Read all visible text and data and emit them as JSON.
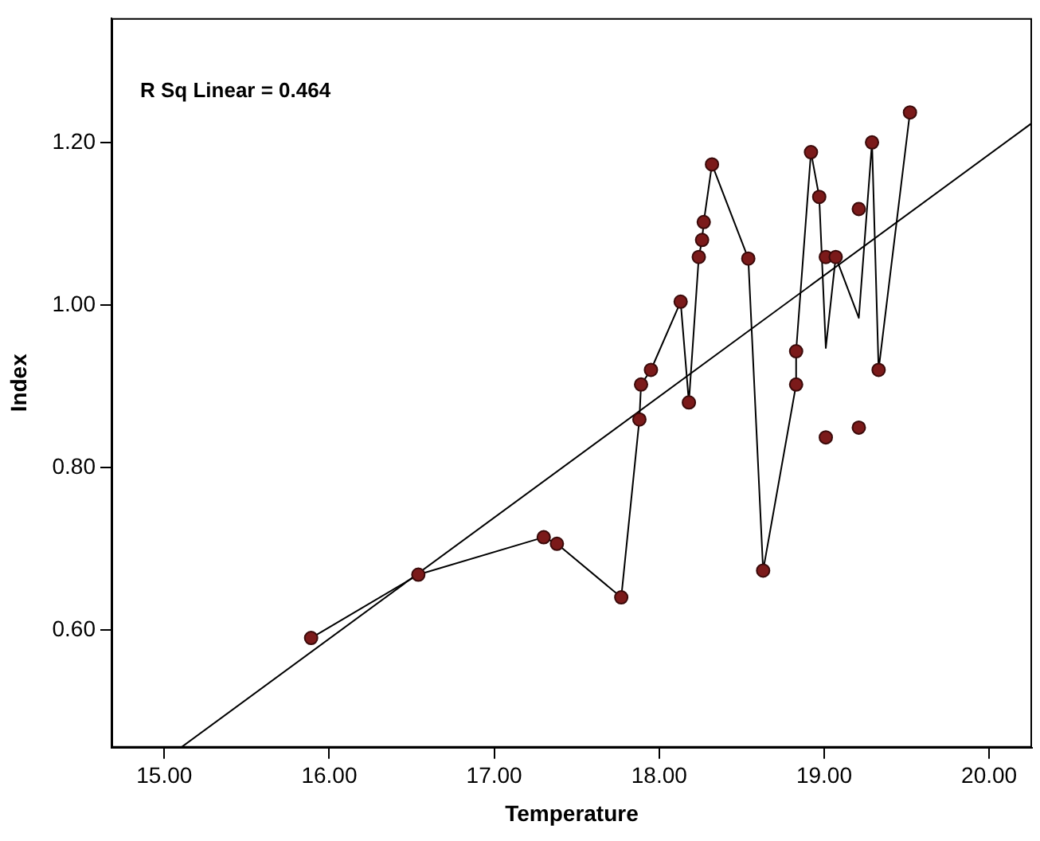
{
  "chart_data": {
    "type": "scatter",
    "xlabel": "Temperature",
    "ylabel": "Index",
    "annotations": [
      "R Sq Linear = 0.464"
    ],
    "xlim": [
      14.68,
      20.26
    ],
    "ylim": [
      0.455,
      1.353
    ],
    "xticks": [
      {
        "value": 15,
        "label": "15.00"
      },
      {
        "value": 16,
        "label": "16.00"
      },
      {
        "value": 17,
        "label": "17.00"
      },
      {
        "value": 18,
        "label": "18.00"
      },
      {
        "value": 19,
        "label": "19.00"
      },
      {
        "value": 20,
        "label": "20.00"
      }
    ],
    "yticks": [
      {
        "value": 0.6,
        "label": "0.60"
      },
      {
        "value": 0.8,
        "label": "0.80"
      },
      {
        "value": 1.0,
        "label": "1.00"
      },
      {
        "value": 1.2,
        "label": "1.20"
      }
    ],
    "grid": false,
    "legend": false,
    "marker": "circle",
    "series": [
      {
        "type": "scatter",
        "color": "#7b1a1a",
        "x": [
          15.89,
          16.54,
          17.3,
          17.38,
          17.77,
          17.88,
          17.89,
          17.95,
          18.13,
          18.18,
          18.24,
          18.26,
          18.27,
          18.32,
          18.54,
          18.63,
          18.83,
          18.83,
          18.92,
          18.97,
          19.01,
          19.01,
          19.07,
          19.21,
          19.21,
          19.29,
          19.33,
          19.52
        ],
        "values": [
          0.59,
          0.668,
          0.714,
          0.706,
          0.64,
          0.859,
          0.902,
          0.92,
          1.004,
          0.88,
          1.059,
          1.08,
          1.102,
          1.173,
          1.057,
          0.673,
          0.902,
          0.943,
          1.188,
          1.133,
          1.059,
          0.837,
          1.059,
          1.118,
          0.849,
          1.2,
          0.92,
          1.237
        ]
      },
      {
        "type": "line",
        "color": "#000000",
        "marker": "none",
        "x": [
          15.89,
          16.54,
          17.3,
          17.38,
          17.77,
          17.88,
          17.89,
          17.95,
          18.13,
          18.18,
          18.24,
          18.26,
          18.27,
          18.32,
          18.54,
          18.63,
          18.83,
          18.83,
          18.92,
          18.97,
          19.01,
          19.07,
          19.21,
          19.29,
          19.33,
          19.52
        ],
        "values": [
          0.59,
          0.668,
          0.714,
          0.706,
          0.64,
          0.859,
          0.902,
          0.92,
          1.004,
          0.88,
          1.059,
          1.08,
          1.102,
          1.173,
          1.057,
          0.673,
          0.902,
          0.943,
          1.188,
          1.133,
          0.947,
          1.059,
          0.984,
          1.2,
          0.92,
          1.237
        ]
      },
      {
        "type": "line",
        "color": "#000000",
        "marker": "none",
        "x": [
          15.1,
          20.26
        ],
        "values": [
          0.455,
          1.224
        ]
      }
    ]
  }
}
